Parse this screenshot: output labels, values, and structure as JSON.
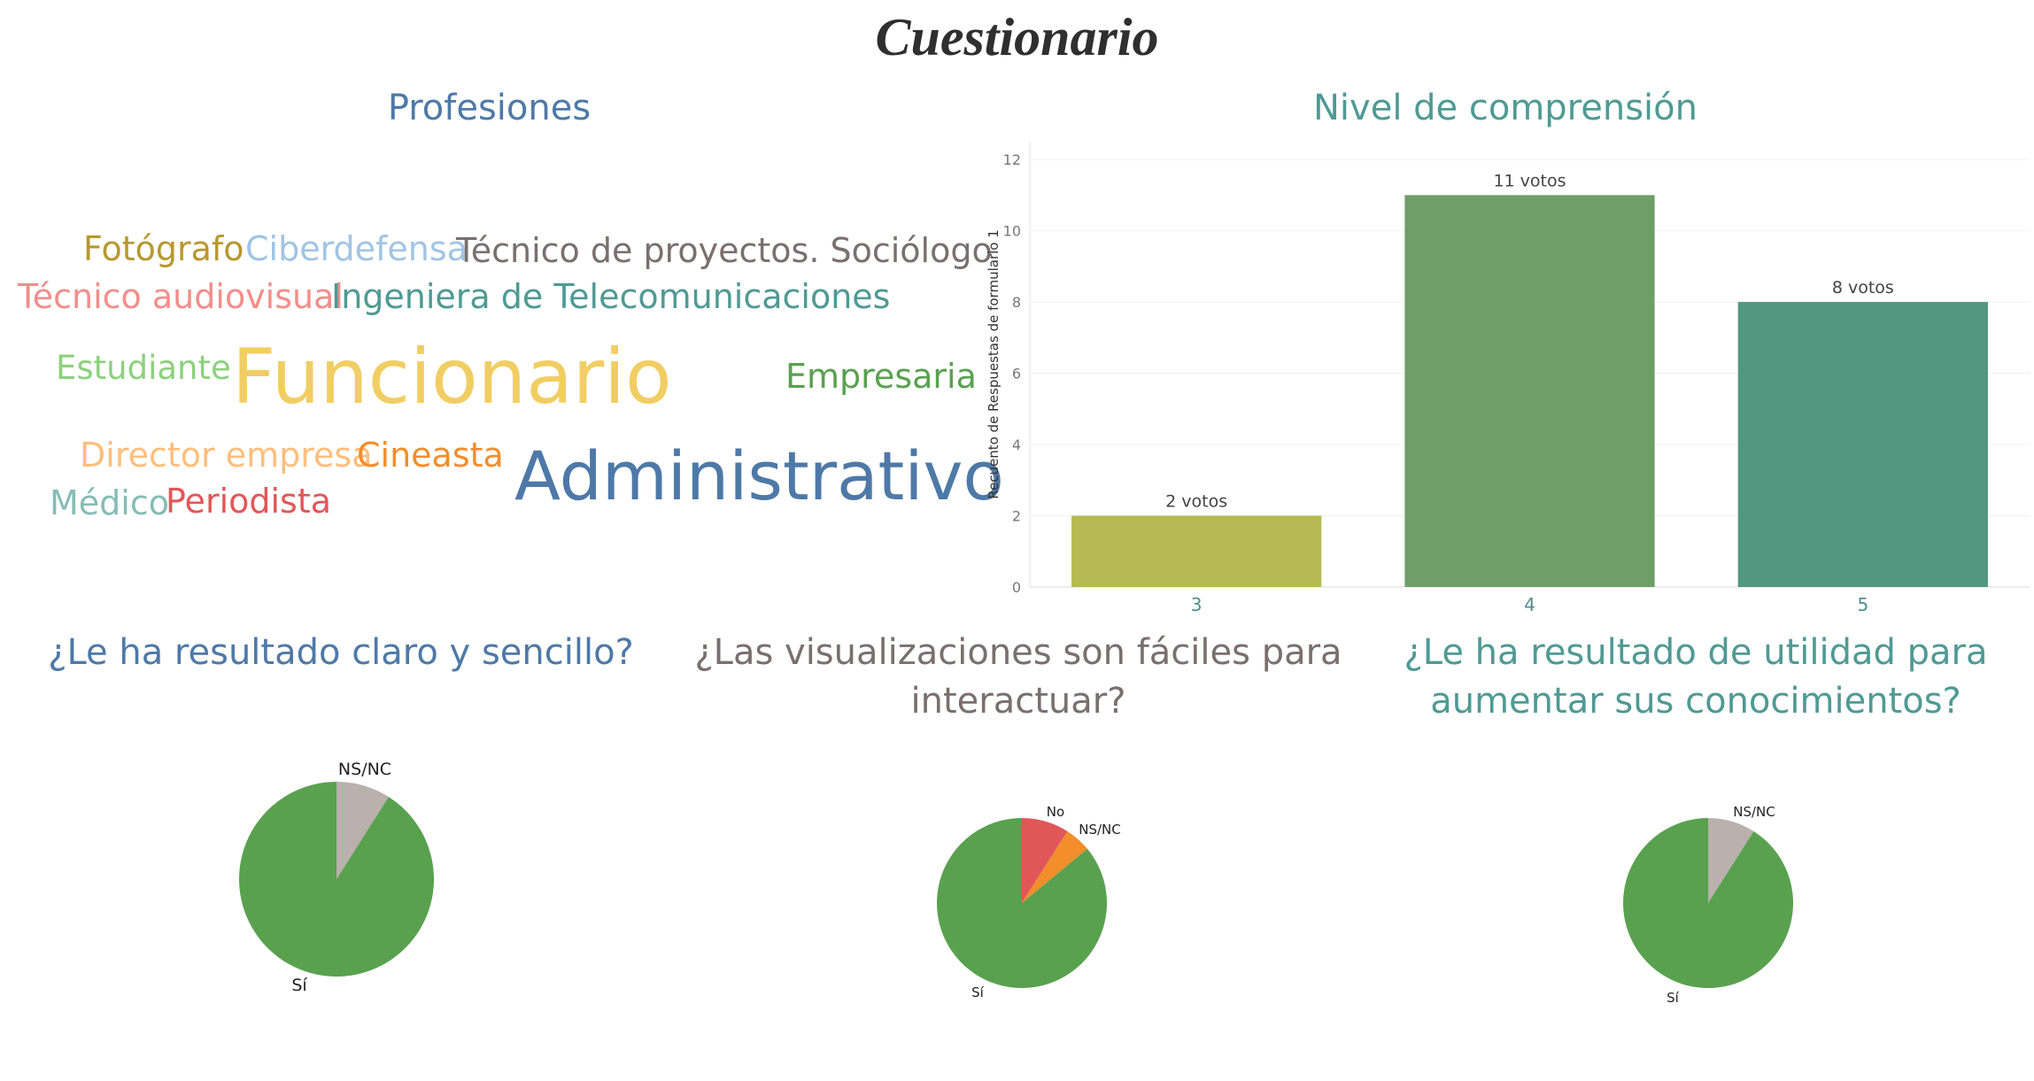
{
  "title": "Cuestionario",
  "wordcloud": {
    "title": "Profesiones",
    "words": [
      {
        "text": "Fotógrafo",
        "color": "#b8972f"
      },
      {
        "text": "Ciberdefensa",
        "color": "#a0c4e4"
      },
      {
        "text": "Técnico de proyectos. Sociólogo",
        "color": "#79706e"
      },
      {
        "text": "Técnico audiovisual",
        "color": "#f28e8b"
      },
      {
        "text": "Ingeniera de Telecomunicaciones",
        "color": "#4f9a94"
      },
      {
        "text": "Estudiante",
        "color": "#8cd17d"
      },
      {
        "text": "Funcionario",
        "color": "#f1ce63"
      },
      {
        "text": "Empresaria",
        "color": "#59a14f"
      },
      {
        "text": "Director empresa",
        "color": "#ffbe7d"
      },
      {
        "text": "Cineasta",
        "color": "#f28e2b"
      },
      {
        "text": "Administrativo",
        "color": "#4e79a7"
      },
      {
        "text": "Médico",
        "color": "#86bcb6"
      },
      {
        "text": "Periodista",
        "color": "#e15759"
      }
    ]
  },
  "chart_data": [
    {
      "type": "bar",
      "title": "Nivel de comprensión",
      "ylabel": "Recuento de Respuestas de formulario 1",
      "xlabel": "",
      "categories": [
        "3",
        "4",
        "5"
      ],
      "values": [
        2,
        11,
        8
      ],
      "data_labels": [
        "2 votos",
        "11 votos",
        "8 votos"
      ],
      "colors": [
        "#b5bb52",
        "#6f9e68",
        "#52977f"
      ],
      "ylim": [
        0,
        12.5
      ],
      "yticks": [
        "0",
        "2",
        "4",
        "6",
        "8",
        "10",
        "12"
      ],
      "grid": true
    },
    {
      "type": "pie",
      "title": "¿Le ha resultado claro y sencillo?",
      "slices": [
        {
          "label": "Sí",
          "value": 91,
          "color": "#59a14f"
        },
        {
          "label": "NS/NC",
          "value": 9,
          "color": "#bab0ac"
        }
      ]
    },
    {
      "type": "pie",
      "title": "¿Las visualizaciones son fáciles para interactuar?",
      "slices": [
        {
          "label": "Sí",
          "value": 86,
          "color": "#59a14f"
        },
        {
          "label": "No",
          "value": 9,
          "color": "#e15759"
        },
        {
          "label": "NS/NC",
          "value": 5,
          "color": "#f28e2b"
        }
      ]
    },
    {
      "type": "pie",
      "title": "¿Le ha resultado de utilidad para aumentar sus conocimientos?",
      "slices": [
        {
          "label": "Sí",
          "value": 91,
          "color": "#59a14f"
        },
        {
          "label": "NS/NC",
          "value": 9,
          "color": "#bab0ac"
        }
      ]
    }
  ]
}
